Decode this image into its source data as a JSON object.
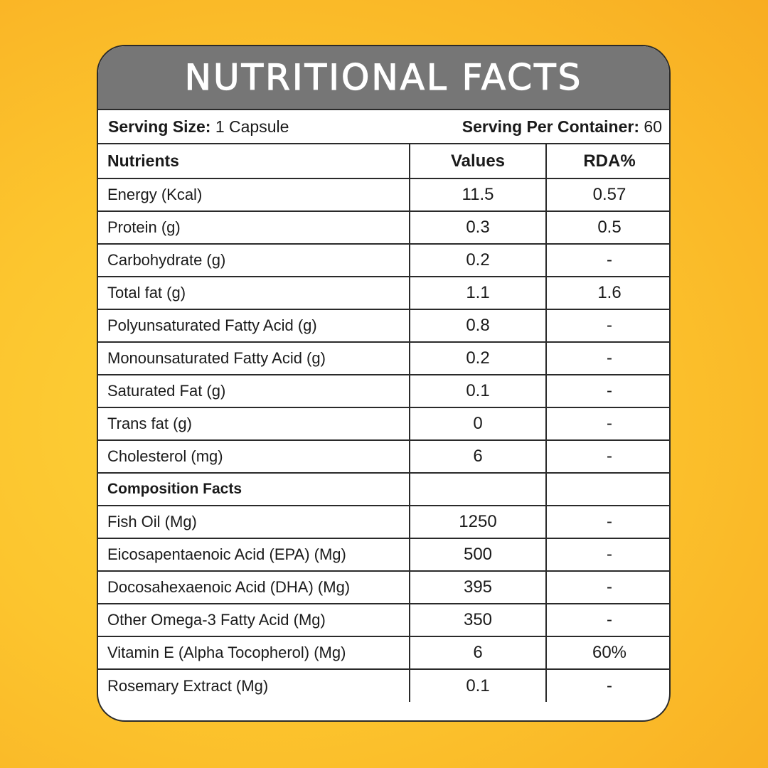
{
  "title": "NUTRITIONAL FACTS",
  "serving": {
    "size_label": "Serving Size:",
    "size_value": "1 Capsule",
    "per_container_label": "Serving Per Container:",
    "per_container_value": "60"
  },
  "headers": {
    "nutrients": "Nutrients",
    "values": "Values",
    "rda": "RDA%"
  },
  "rows": [
    {
      "name": "Energy (Kcal)",
      "value": "11.5",
      "rda": "0.57"
    },
    {
      "name": "Protein (g)",
      "value": "0.3",
      "rda": "0.5"
    },
    {
      "name": "Carbohydrate (g)",
      "value": "0.2",
      "rda": "-"
    },
    {
      "name": "Total fat (g)",
      "value": "1.1",
      "rda": "1.6"
    },
    {
      "name": "Polyunsaturated Fatty Acid (g)",
      "value": "0.8",
      "rda": "-"
    },
    {
      "name": "Monounsaturated Fatty Acid (g)",
      "value": "0.2",
      "rda": "-"
    },
    {
      "name": "Saturated Fat (g)",
      "value": "0.1",
      "rda": "-"
    },
    {
      "name": "Trans fat (g)",
      "value": "0",
      "rda": "-"
    },
    {
      "name": "Cholesterol (mg)",
      "value": "6",
      "rda": "-"
    }
  ],
  "section_title": "Composition Facts",
  "composition_rows": [
    {
      "name": "Fish Oil (Mg)",
      "value": "1250",
      "rda": "-"
    },
    {
      "name": "Eicosapentaenoic Acid (EPA) (Mg)",
      "value": "500",
      "rda": "-"
    },
    {
      "name": "Docosahexaenoic Acid (DHA) (Mg)",
      "value": "395",
      "rda": "-"
    },
    {
      "name": "Other Omega-3 Fatty Acid (Mg)",
      "value": "350",
      "rda": "-"
    },
    {
      "name": "Vitamin E (Alpha Tocopherol) (Mg)",
      "value": "6",
      "rda": "60%"
    },
    {
      "name": "Rosemary Extract (Mg)",
      "value": "0.1",
      "rda": "-"
    }
  ],
  "colors": {
    "title_bar": "#767676",
    "background": "#fcc52e",
    "border": "#2a2a2a"
  }
}
